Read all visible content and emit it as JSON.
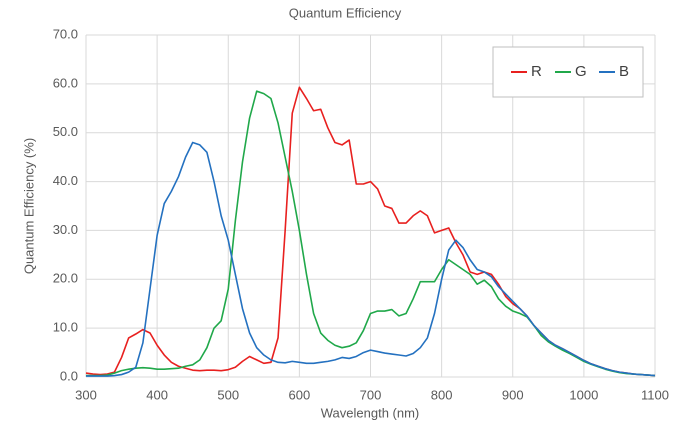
{
  "chart_data": {
    "type": "line",
    "title": "Quantum Efficiency",
    "xlabel": "Wavelength (nm)",
    "ylabel": "Quantum Efficiency (%)",
    "x": [
      300,
      310,
      320,
      330,
      340,
      350,
      360,
      370,
      380,
      390,
      400,
      410,
      420,
      430,
      440,
      450,
      460,
      470,
      480,
      490,
      500,
      510,
      520,
      530,
      540,
      550,
      560,
      570,
      580,
      590,
      600,
      610,
      620,
      630,
      640,
      650,
      660,
      670,
      680,
      690,
      700,
      710,
      720,
      730,
      740,
      750,
      760,
      770,
      780,
      790,
      800,
      810,
      820,
      830,
      840,
      850,
      860,
      870,
      880,
      890,
      900,
      910,
      920,
      930,
      940,
      950,
      960,
      970,
      980,
      990,
      1000,
      1010,
      1020,
      1030,
      1040,
      1050,
      1060,
      1070,
      1080,
      1090,
      1100
    ],
    "series": [
      {
        "name": "R",
        "color": "#e8201f",
        "values": [
          0.8,
          0.6,
          0.5,
          0.6,
          1.0,
          4,
          8,
          8.8,
          9.7,
          9,
          6.5,
          4.5,
          3,
          2.2,
          1.8,
          1.4,
          1.3,
          1.4,
          1.4,
          1.3,
          1.5,
          2,
          3.2,
          4.2,
          3.5,
          2.8,
          3,
          8,
          30,
          54,
          59.3,
          57,
          54.5,
          54.8,
          51,
          48,
          47.5,
          48.5,
          39.5,
          39.5,
          40,
          38.5,
          35,
          34.5,
          31.5,
          31.5,
          33,
          34,
          33,
          29.5,
          30,
          30.5,
          27.5,
          25,
          21.5,
          21,
          21.5,
          21,
          19,
          16.5,
          15,
          14,
          12.5,
          10.5,
          9,
          7.5,
          6.5,
          5.8,
          5,
          4.2,
          3.4,
          2.7,
          2.2,
          1.7,
          1.3,
          1,
          0.8,
          0.6,
          0.5,
          0.4,
          0.3
        ]
      },
      {
        "name": "G",
        "color": "#20a84a",
        "values": [
          0.3,
          0.3,
          0.3,
          0.4,
          0.8,
          1.3,
          1.6,
          1.8,
          1.9,
          1.8,
          1.6,
          1.6,
          1.7,
          1.8,
          2.2,
          2.5,
          3.5,
          6,
          10,
          11.5,
          18,
          32,
          44,
          53,
          58.5,
          58,
          57,
          52,
          45,
          38,
          30,
          21,
          13,
          9,
          7.5,
          6.5,
          6,
          6.3,
          7,
          9.5,
          13,
          13.5,
          13.5,
          13.8,
          12.5,
          13,
          16,
          19.5,
          19.5,
          19.5,
          22,
          24,
          23,
          22,
          21,
          19,
          19.8,
          18.5,
          16,
          14.5,
          13.5,
          13,
          12.3,
          10.5,
          8.5,
          7.2,
          6.3,
          5.5,
          4.8,
          4,
          3.2,
          2.6,
          2.1,
          1.6,
          1.2,
          0.9,
          0.7,
          0.6,
          0.5,
          0.4,
          0.3
        ]
      },
      {
        "name": "B",
        "color": "#2471c0",
        "values": [
          0.2,
          0.2,
          0.2,
          0.2,
          0.3,
          0.5,
          1,
          2,
          7,
          18,
          29,
          35.5,
          38,
          41,
          45,
          48,
          47.5,
          46,
          40,
          33,
          28,
          21,
          14,
          9,
          6,
          4.5,
          3.5,
          3,
          2.9,
          3.2,
          3,
          2.8,
          2.8,
          3,
          3.2,
          3.5,
          4,
          3.8,
          4.2,
          5,
          5.5,
          5.2,
          4.9,
          4.7,
          4.5,
          4.3,
          4.8,
          6,
          8,
          13,
          20,
          26,
          28,
          26.5,
          24,
          22,
          21.5,
          20.5,
          18.5,
          17,
          15.5,
          14,
          12.5,
          10.5,
          9,
          7.5,
          6.5,
          5.8,
          5,
          4.2,
          3.4,
          2.7,
          2.2,
          1.7,
          1.3,
          1,
          0.8,
          0.6,
          0.5,
          0.4,
          0.3
        ]
      }
    ],
    "xlim": [
      300,
      1100
    ],
    "xticks": [
      300,
      400,
      500,
      600,
      700,
      800,
      900,
      1000,
      1100
    ],
    "ylim": [
      0,
      70
    ],
    "yticks": [
      {
        "value": 0,
        "label": "0.0"
      },
      {
        "value": 10,
        "label": "10.0"
      },
      {
        "value": 20,
        "label": "20.0"
      },
      {
        "value": 30,
        "label": "30.0"
      },
      {
        "value": 40,
        "label": "40.0"
      },
      {
        "value": 50,
        "label": "50.0"
      },
      {
        "value": 60,
        "label": "60.0"
      },
      {
        "value": 70,
        "label": "70.0"
      }
    ],
    "grid": true,
    "legend": "upper right"
  }
}
